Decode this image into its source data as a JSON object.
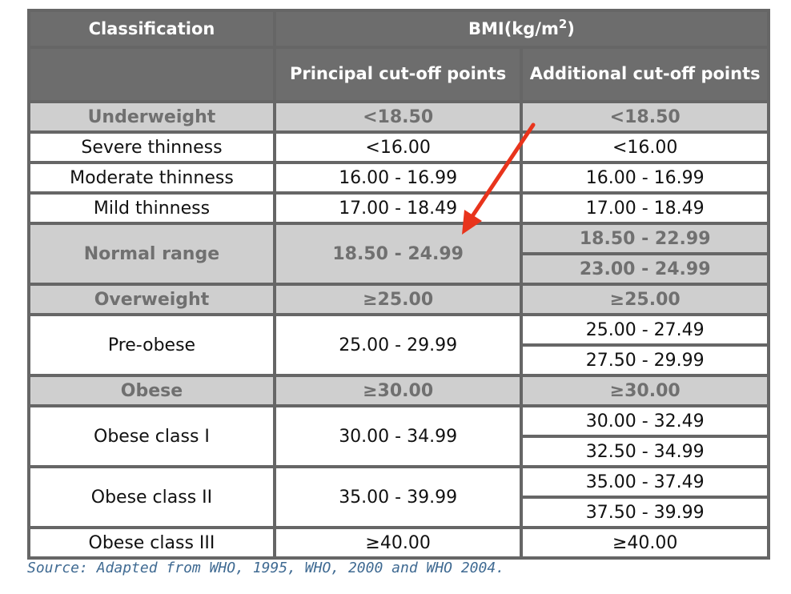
{
  "header": {
    "classification": "Classification",
    "bmi_label": "BMI(kg/m",
    "bmi_exponent": "2",
    "bmi_close": ")",
    "principal": "Principal cut-off points",
    "additional": "Additional cut-off points"
  },
  "rows": [
    {
      "label": "Underweight",
      "principal": "<18.50",
      "additional": [
        "<18.50"
      ],
      "category": true,
      "indent": 0
    },
    {
      "label": "Severe thinness",
      "principal": "<16.00",
      "additional": [
        "<16.00"
      ],
      "category": false,
      "indent": 1
    },
    {
      "label": "Moderate thinness",
      "principal": "16.00 - 16.99",
      "additional": [
        "16.00 - 16.99"
      ],
      "category": false,
      "indent": 1
    },
    {
      "label": "Mild thinness",
      "principal": "17.00 - 18.49",
      "additional": [
        "17.00 - 18.49"
      ],
      "category": false,
      "indent": 1
    },
    {
      "label": "Normal range",
      "principal": "18.50 - 24.99",
      "additional": [
        "18.50 - 22.99",
        "23.00 - 24.99"
      ],
      "category": true,
      "indent": 0
    },
    {
      "label": "Overweight",
      "principal": "≥25.00",
      "additional": [
        "≥25.00"
      ],
      "category": true,
      "indent": 0
    },
    {
      "label": "Pre-obese",
      "principal": "25.00 - 29.99",
      "additional": [
        "25.00 - 27.49",
        "27.50 - 29.99"
      ],
      "category": false,
      "indent": 1
    },
    {
      "label": "Obese",
      "principal": "≥30.00",
      "additional": [
        "≥30.00"
      ],
      "category": true,
      "indent": 1
    },
    {
      "label": "Obese class I",
      "principal": "30.00 - 34.99",
      "additional": [
        "30.00 - 32.49",
        "32.50 - 34.99"
      ],
      "category": false,
      "indent": 2
    },
    {
      "label": "Obese class II",
      "principal": "35.00 - 39.99",
      "additional": [
        "35.00 - 37.49",
        "37.50 - 39.99"
      ],
      "category": false,
      "indent": 2
    },
    {
      "label": "Obese class III",
      "principal": "≥40.00",
      "additional": [
        "≥40.00"
      ],
      "category": false,
      "indent": 2
    }
  ],
  "source": "Source: Adapted from WHO, 1995, WHO, 2000 and WHO 2004.",
  "colors": {
    "header_bg": "#6d6d6d",
    "category_bg": "#cfcfcf",
    "category_text": "#707070",
    "border": "#666666",
    "source_text": "#3f6a92",
    "arrow": "#e8341c"
  },
  "annotation": {
    "arrow_color": "#e8341c"
  }
}
